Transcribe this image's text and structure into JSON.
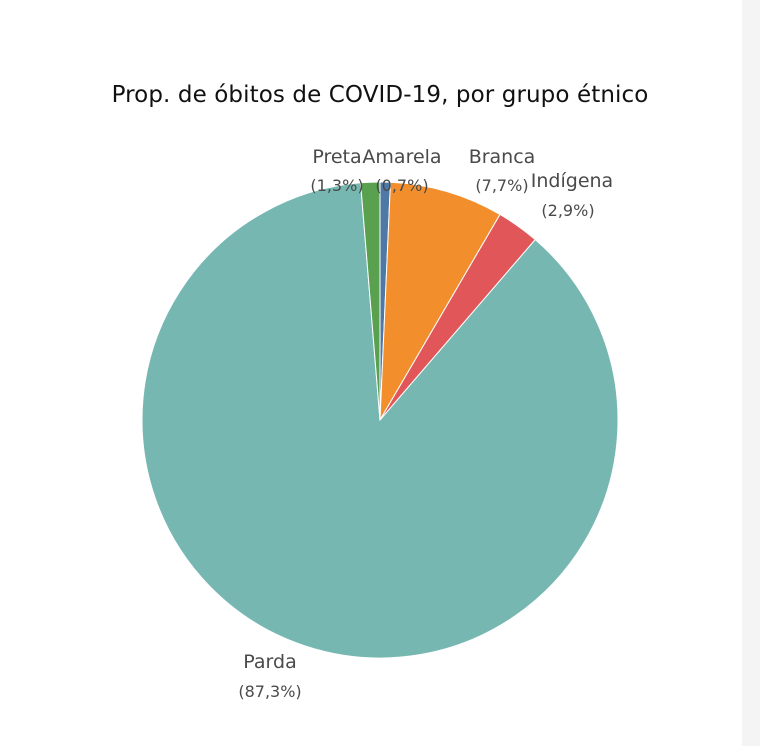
{
  "chart_data": {
    "type": "pie",
    "title": "Prop. de óbitos de COVID-19, por grupo étnico",
    "slices": [
      {
        "label": "Amarela",
        "percent_label": "(0,7%)",
        "value": 0.7,
        "color": "#4e79a7"
      },
      {
        "label": "Branca",
        "percent_label": "(7,7%)",
        "value": 7.7,
        "color": "#f28e2b"
      },
      {
        "label": "Indígena",
        "percent_label": "(2,9%)",
        "value": 2.9,
        "color": "#e15759"
      },
      {
        "label": "Parda",
        "percent_label": "(87,3%)",
        "value": 87.3,
        "color": "#76b7b2"
      },
      {
        "label": "Preta",
        "percent_label": "(1,3%)",
        "value": 1.3,
        "color": "#59a14f"
      }
    ]
  }
}
